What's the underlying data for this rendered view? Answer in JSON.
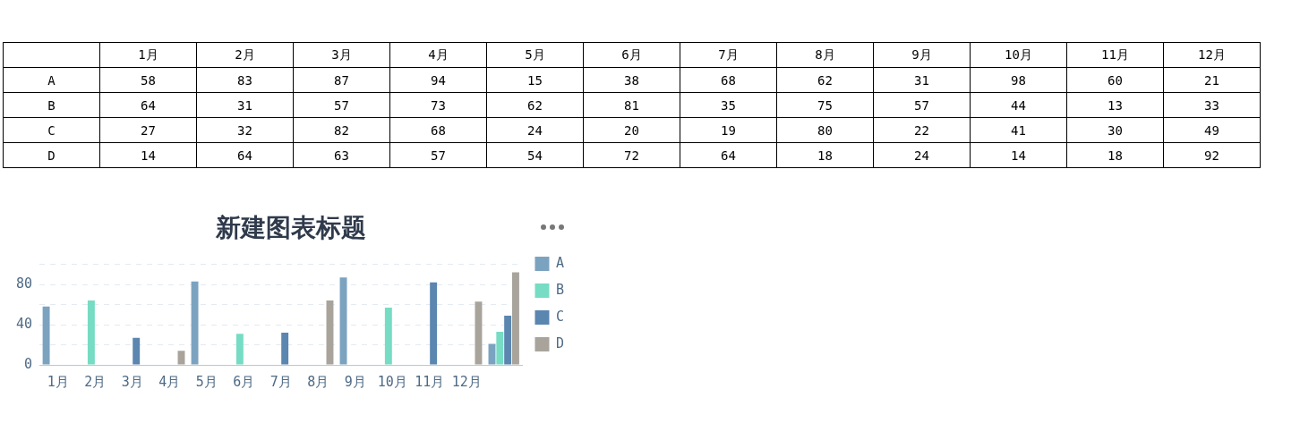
{
  "chart_data": [
    {
      "type": "heatmap",
      "categories": [
        "1月",
        "2月",
        "3月",
        "4月",
        "5月",
        "6月",
        "7月",
        "8月",
        "9月",
        "10月",
        "11月",
        "12月"
      ],
      "y_categories": [
        "A",
        "B",
        "C",
        "D"
      ],
      "data_labels": true,
      "cells": [
        [
          58,
          83,
          87,
          94,
          15,
          38,
          68,
          62,
          31,
          98,
          60,
          21
        ],
        [
          64,
          31,
          57,
          73,
          62,
          81,
          35,
          75,
          57,
          44,
          13,
          33
        ],
        [
          27,
          32,
          82,
          68,
          24,
          20,
          19,
          80,
          22,
          41,
          30,
          49
        ],
        [
          14,
          64,
          63,
          57,
          54,
          72,
          64,
          18,
          24,
          14,
          18,
          92
        ]
      ]
    },
    {
      "type": "bar",
      "title": "新建图表标题",
      "categories": [
        "1月",
        "2月",
        "3月",
        "4月",
        "5月",
        "6月",
        "7月",
        "8月",
        "9月",
        "10月",
        "11月",
        "12月",
        null
      ],
      "series": [
        {
          "name": "A",
          "color": "#7ba3c0",
          "values": [
            58,
            null,
            null,
            null,
            83,
            null,
            null,
            null,
            87,
            null,
            null,
            null,
            21
          ]
        },
        {
          "name": "B",
          "color": "#76dcc4",
          "values": [
            null,
            64,
            null,
            null,
            null,
            31,
            null,
            null,
            null,
            57,
            null,
            null,
            33
          ]
        },
        {
          "name": "C",
          "color": "#5a86b0",
          "values": [
            null,
            null,
            27,
            null,
            null,
            null,
            32,
            null,
            null,
            null,
            82,
            null,
            49
          ]
        },
        {
          "name": "D",
          "color": "#a8a49c",
          "values": [
            null,
            null,
            null,
            14,
            null,
            null,
            null,
            64,
            null,
            null,
            null,
            63,
            92
          ]
        }
      ],
      "ylim": [
        0,
        100
      ],
      "yticks": [
        0,
        {
          "value": 20,
          "label": null
        },
        40,
        {
          "value": 60,
          "label": null
        },
        80,
        {
          "value": 100,
          "label": null
        }
      ],
      "grid": "y",
      "legend": "right"
    }
  ]
}
